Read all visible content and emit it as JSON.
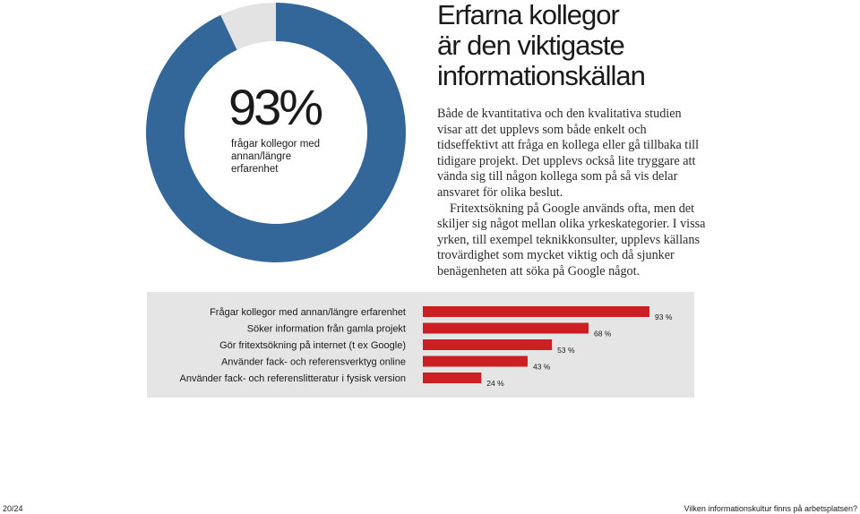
{
  "title_lines": [
    "Erfarna kollegor",
    "är den viktigaste",
    "informationskällan"
  ],
  "body_paragraphs": [
    "Både de kvantitativa och den kvalitativa studien visar att det upplevs som både enkelt och tidseffektivt att fråga en kollega eller gå tillbaka till tidigare projekt. Det upplevs också lite tryggare att vända sig till någon kollega som på så vis delar ansvaret för olika beslut.",
    "Fritextsökning på Google används ofta, men det skiljer sig något mellan olika yrkeskategorier. I vissa yrken, till exempel teknikkonsulter, upplevs källans trovärdighet som mycket viktig och då sjunker benägenheten att söka på Google något."
  ],
  "footer": {
    "page_number": "20/24",
    "title": "Vilken informationskultur finns på arbetsplatsen?"
  },
  "colors": {
    "donut_fill": "#336699",
    "donut_rest": "#e3e3e3",
    "bar_fill": "#cc1f24",
    "panel_bg": "#e5e5e5"
  },
  "chart_data": [
    {
      "type": "pie",
      "style": "donut",
      "big_label": "93%",
      "caption": "frågar kollegor med annan/längre erfarenhet",
      "values": [
        93,
        7
      ],
      "colors": [
        "#336699",
        "#e3e3e3"
      ]
    },
    {
      "type": "bar",
      "orientation": "horizontal",
      "categories": [
        "Frågar kollegor med annan/längre erfarenhet",
        "Söker information från gamla projekt",
        "Gör fritextsökning på internet (t ex Google)",
        "Använder fack- och referensverktyg online",
        "Använder fack- och referenslitteratur i fysisk version"
      ],
      "values": [
        93,
        68,
        53,
        43,
        24
      ],
      "value_labels": [
        "93 %",
        "68 %",
        "53 %",
        "43 %",
        "24 %"
      ],
      "xlim": [
        0,
        100
      ],
      "color": "#cc1f24",
      "grid": false
    }
  ]
}
